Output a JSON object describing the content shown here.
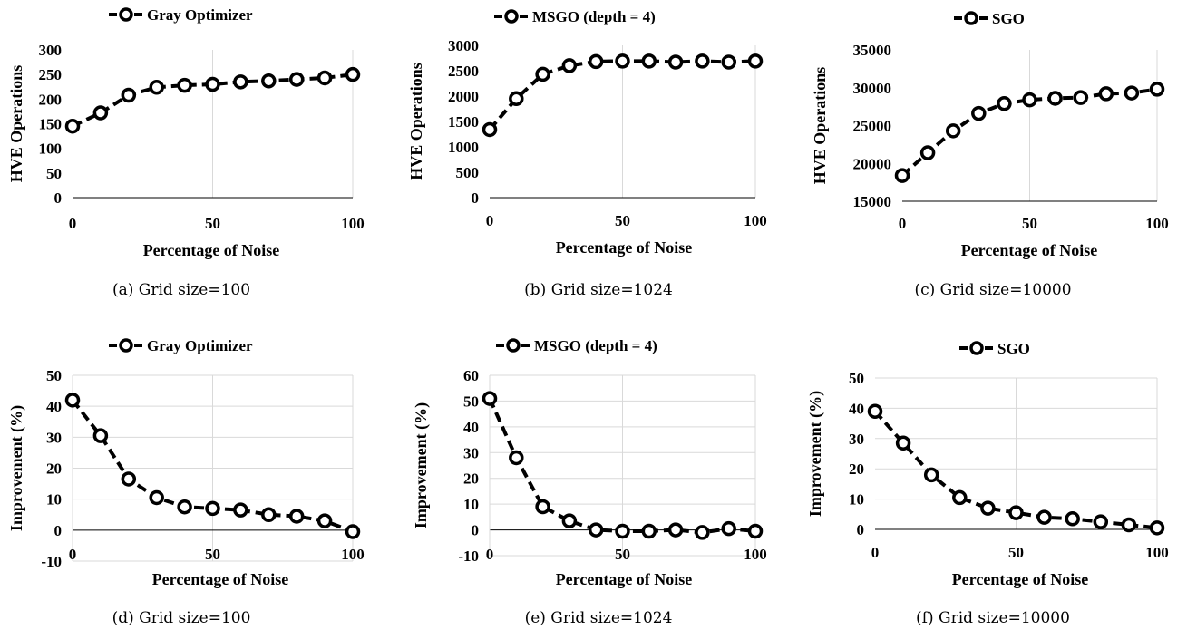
{
  "chart_data": [
    {
      "type": "line",
      "legend": "Gray Optimizer",
      "caption": "(a) Grid size=100",
      "xlabel": "Percentage of Noise",
      "ylabel": "HVE Operations",
      "x": [
        0,
        10,
        20,
        30,
        40,
        50,
        60,
        70,
        80,
        90,
        100
      ],
      "values": [
        145,
        172,
        208,
        224,
        228,
        230,
        235,
        237,
        240,
        243,
        250
      ],
      "xlim": [
        0,
        100
      ],
      "ylim": [
        0,
        300
      ],
      "xticks": [
        "0",
        "50",
        "100"
      ],
      "yticks": [
        "0",
        "50",
        "100",
        "150",
        "200",
        "250",
        "300"
      ],
      "grid": "vertical"
    },
    {
      "type": "line",
      "legend": "MSGO (depth = 4)",
      "caption": "(b) Grid size=1024",
      "xlabel": "Percentage of Noise",
      "ylabel": "HVE Operations",
      "x": [
        0,
        10,
        20,
        30,
        40,
        50,
        60,
        70,
        80,
        90,
        100
      ],
      "values": [
        1340,
        1950,
        2430,
        2600,
        2680,
        2690,
        2690,
        2670,
        2690,
        2670,
        2690
      ],
      "xlim": [
        0,
        100
      ],
      "ylim": [
        0,
        3000
      ],
      "xticks": [
        "0",
        "50",
        "100"
      ],
      "yticks": [
        "0",
        "500",
        "1000",
        "1500",
        "2000",
        "2500",
        "3000"
      ],
      "grid": "vertical"
    },
    {
      "type": "line",
      "legend": "SGO",
      "caption": "(c) Grid size=10000",
      "xlabel": "Percentage of Noise",
      "ylabel": "HVE Operations",
      "x": [
        0,
        10,
        20,
        30,
        40,
        50,
        60,
        70,
        80,
        90,
        100
      ],
      "values": [
        18400,
        21400,
        24300,
        26600,
        27900,
        28400,
        28600,
        28700,
        29200,
        29300,
        29800
      ],
      "xlim": [
        0,
        100
      ],
      "ylim": [
        15000,
        35000
      ],
      "xticks": [
        "0",
        "50",
        "100"
      ],
      "yticks": [
        "15000",
        "20000",
        "25000",
        "30000",
        "35000"
      ],
      "grid": "vertical"
    },
    {
      "type": "line",
      "legend": "Gray Optimizer",
      "caption": "(d) Grid size=100",
      "xlabel": "Percentage of Noise",
      "ylabel": "Improvement (%)",
      "x": [
        0,
        10,
        20,
        30,
        40,
        50,
        60,
        70,
        80,
        90,
        100
      ],
      "values": [
        42,
        30.5,
        16.5,
        10.5,
        7.5,
        7,
        6.5,
        5,
        4.5,
        3,
        -0.5
      ],
      "xlim": [
        0,
        100
      ],
      "ylim": [
        -10,
        50
      ],
      "xticks": [
        "0",
        "50",
        "100"
      ],
      "yticks": [
        "-10",
        "0",
        "10",
        "20",
        "30",
        "40",
        "50"
      ],
      "grid": "both"
    },
    {
      "type": "line",
      "legend": "MSGO (depth = 4)",
      "caption": "(e) Grid size=1024",
      "xlabel": "Percentage of Noise",
      "ylabel": "Improvement (%)",
      "x": [
        0,
        10,
        20,
        30,
        40,
        50,
        60,
        70,
        80,
        90,
        100
      ],
      "values": [
        51,
        28,
        9,
        3.5,
        0,
        -0.5,
        -0.5,
        0,
        -1,
        0.5,
        -0.5
      ],
      "xlim": [
        0,
        100
      ],
      "ylim": [
        -10,
        60
      ],
      "xticks": [
        "0",
        "50",
        "100"
      ],
      "yticks": [
        "-10",
        "0",
        "10",
        "20",
        "30",
        "40",
        "50",
        "60"
      ],
      "grid": "both"
    },
    {
      "type": "line",
      "legend": "SGO",
      "caption": "(f) Grid size=10000",
      "xlabel": "Percentage of Noise",
      "ylabel": "Improvement (%)",
      "x": [
        0,
        10,
        20,
        30,
        40,
        50,
        60,
        70,
        80,
        90,
        100
      ],
      "values": [
        39,
        28.5,
        18,
        10.5,
        7,
        5.5,
        4,
        3.5,
        2.5,
        1.5,
        0.5
      ],
      "xlim": [
        0,
        100
      ],
      "ylim": [
        0,
        50
      ],
      "xticks": [
        "0",
        "50",
        "100"
      ],
      "yticks": [
        "0",
        "10",
        "20",
        "30",
        "40",
        "50"
      ],
      "grid": "both"
    }
  ]
}
